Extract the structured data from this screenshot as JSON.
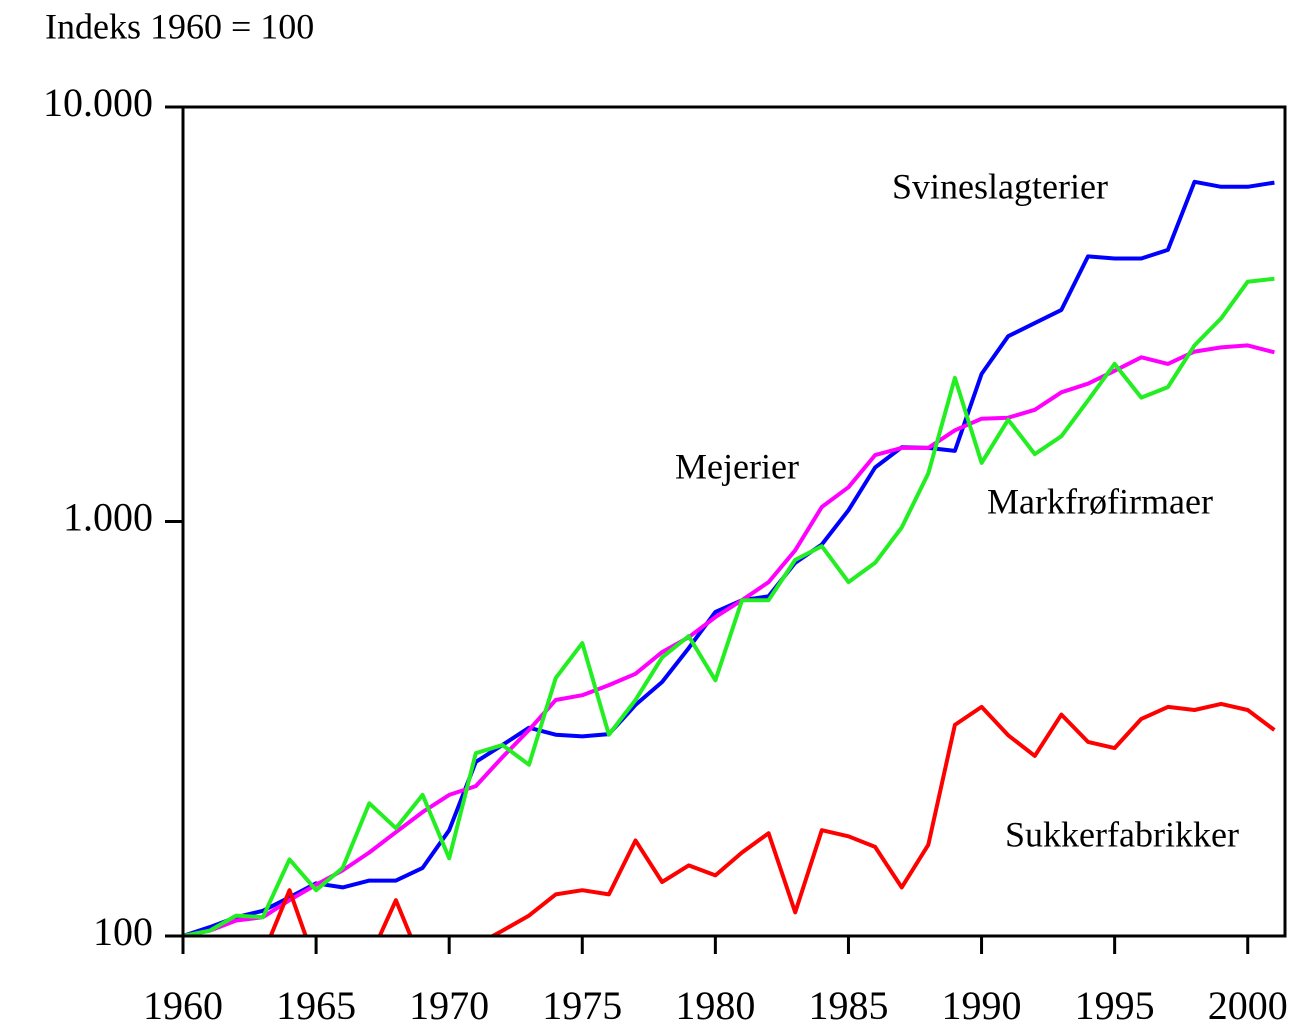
{
  "chart_data": {
    "type": "line",
    "title": "Indeks 1960 = 100",
    "x": [
      1960,
      1961,
      1962,
      1963,
      1964,
      1965,
      1966,
      1967,
      1968,
      1969,
      1970,
      1971,
      1972,
      1973,
      1974,
      1975,
      1976,
      1977,
      1978,
      1979,
      1980,
      1981,
      1982,
      1983,
      1984,
      1985,
      1986,
      1987,
      1988,
      1989,
      1990,
      1991,
      1992,
      1993,
      1994,
      1995,
      1996,
      1997,
      1998,
      1999,
      2000,
      2001
    ],
    "series": [
      {
        "name": "Svineslagterier",
        "color": "#0000ff",
        "values": [
          100,
          105,
          111,
          115,
          124,
          134,
          131,
          136,
          136,
          146,
          180,
          263,
          289,
          318,
          306,
          303,
          307,
          361,
          410,
          495,
          605,
          646,
          660,
          795,
          880,
          1065,
          1350,
          1510,
          1505,
          1480,
          2270,
          2800,
          3010,
          3240,
          4360,
          4310,
          4310,
          4520,
          6600,
          6420,
          6420,
          6570
        ]
      },
      {
        "name": "Mejerier",
        "color": "#ff00ff",
        "values": [
          100,
          103,
          109,
          111,
          122,
          133,
          144,
          159,
          178,
          199,
          219,
          230,
          270,
          314,
          371,
          381,
          403,
          429,
          484,
          526,
          588,
          646,
          714,
          852,
          1084,
          1210,
          1446,
          1505,
          1505,
          1660,
          1770,
          1780,
          1860,
          2050,
          2150,
          2310,
          2490,
          2400,
          2570,
          2630,
          2660,
          2560
        ]
      },
      {
        "name": "Markfrøfirmaer",
        "color": "#22ee22",
        "values": [
          100,
          103,
          112,
          111,
          153,
          129,
          146,
          209,
          182,
          219,
          154,
          276,
          289,
          259,
          419,
          509,
          306,
          371,
          470,
          529,
          414,
          646,
          646,
          808,
          872,
          714,
          795,
          967,
          1306,
          2220,
          1385,
          1760,
          1454,
          1606,
          1960,
          2400,
          1990,
          2110,
          2660,
          3090,
          3790,
          3850
        ]
      },
      {
        "name": "Sukkerfabrikker",
        "color": "#ff0000",
        "values": [
          100,
          95,
          92,
          90,
          129,
          85,
          80,
          88,
          122,
          85,
          88,
          95,
          103,
          112,
          126,
          129,
          126,
          170,
          135,
          148,
          140,
          159,
          177,
          114,
          180,
          174,
          164,
          131,
          166,
          323,
          357,
          305,
          272,
          342,
          294,
          284,
          334,
          357,
          351,
          363,
          351,
          314
        ]
      }
    ],
    "xlim": [
      1960,
      2001.4
    ],
    "xticks": [
      1960,
      1965,
      1970,
      1975,
      1980,
      1985,
      1990,
      1995,
      2000
    ],
    "ylim": [
      100,
      10000
    ],
    "yticks": [
      {
        "value": 10000,
        "label": "10.000"
      },
      {
        "value": 1000,
        "label": "1.000"
      },
      100
    ],
    "ylog": true,
    "grid": false
  }
}
